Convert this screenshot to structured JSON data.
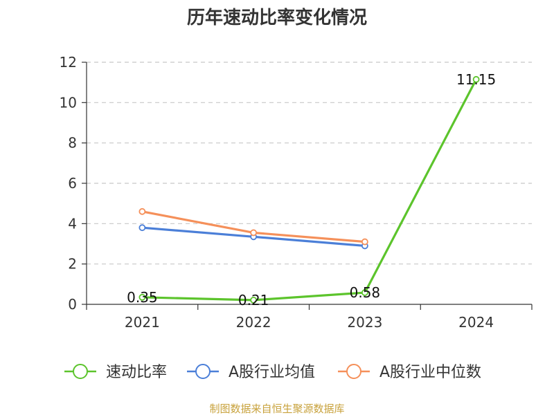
{
  "chart_data": {
    "type": "line",
    "title": "历年速动比率变化情况",
    "categories": [
      "2021",
      "2022",
      "2023",
      "2024"
    ],
    "ylim": [
      0,
      12
    ],
    "yticks": [
      0,
      2,
      4,
      6,
      8,
      10,
      12
    ],
    "grid": true,
    "legend_position": "bottom",
    "series": [
      {
        "name": "速动比率",
        "color": "#5cc42c",
        "values": [
          0.35,
          0.21,
          0.58,
          11.15
        ],
        "labels": [
          "0.35",
          "0.21",
          "0.58",
          "11.15"
        ]
      },
      {
        "name": "A股行业均值",
        "color": "#4b7fd8",
        "values": [
          3.8,
          3.35,
          2.9,
          null
        ]
      },
      {
        "name": "A股行业中位数",
        "color": "#f5905a",
        "values": [
          4.6,
          3.55,
          3.1,
          null
        ]
      }
    ]
  },
  "source": "制图数据来自恒生聚源数据库"
}
